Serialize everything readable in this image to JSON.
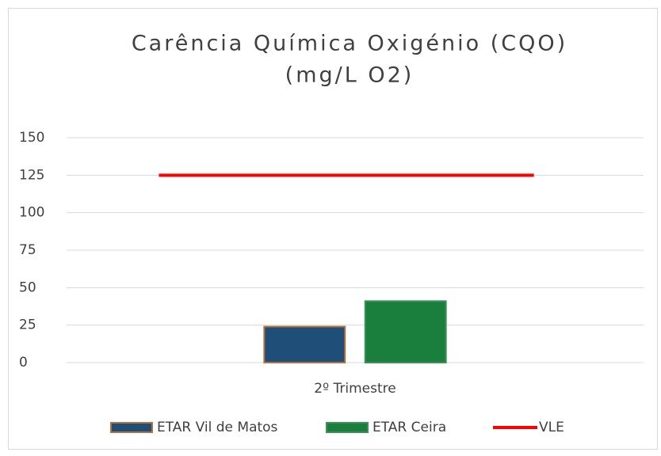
{
  "chart_data": {
    "type": "bar",
    "title": [
      "Carência Química Oxigénio (CQO)",
      "(mg/L O2)"
    ],
    "categories": [
      "2º Trimestre"
    ],
    "series": [
      {
        "name": "ETAR Vil de Matos",
        "color": "#1f4e79",
        "values": [
          24
        ]
      },
      {
        "name": "ETAR Ceira",
        "color": "#1a7f3c",
        "values": [
          41
        ]
      },
      {
        "name": "VLE",
        "type": "line",
        "color": "#ff0000",
        "values": [
          125
        ]
      }
    ],
    "ylim": [
      0,
      150
    ],
    "yticks": [
      0,
      25,
      50,
      75,
      100,
      125,
      150
    ],
    "grid": true,
    "legend": "bottom"
  }
}
